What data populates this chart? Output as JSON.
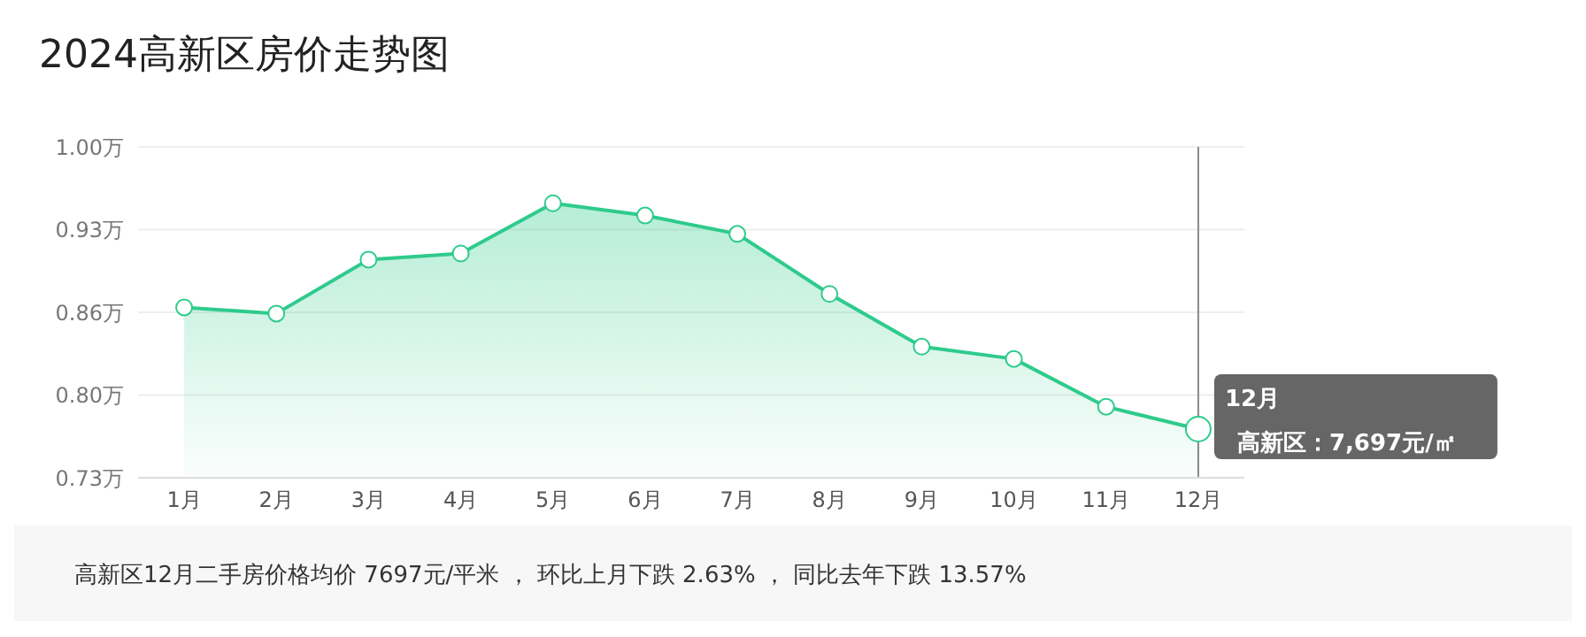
{
  "chart_data": {
    "type": "area",
    "title": "2024高新区房价走势图",
    "categories": [
      "1月",
      "2月",
      "3月",
      "4月",
      "5月",
      "6月",
      "7月",
      "8月",
      "9月",
      "10月",
      "11月",
      "12月"
    ],
    "series": [
      {
        "color": "#2ecb8c",
        "values": [
          0.869,
          0.864,
          0.908,
          0.913,
          0.954,
          0.944,
          0.929,
          0.88,
          0.837,
          0.827,
          0.788,
          0.7697
        ]
      }
    ],
    "ylim": [
      0.73,
      1.0
    ],
    "yticks": [
      {
        "value": 0.73,
        "label": "0.73万"
      },
      {
        "value": 0.7975,
        "label": "0.80万"
      },
      {
        "value": 0.865,
        "label": "0.86万"
      },
      {
        "value": 0.9325,
        "label": "0.93万"
      },
      {
        "value": 1.0,
        "label": "1.00万"
      }
    ],
    "grid": "y",
    "marker": "circle",
    "line_style": "solid",
    "legend": false,
    "ref_lines": [
      {
        "axis": "x",
        "value": "12月",
        "color": "#888888"
      }
    ],
    "annotations": [
      {
        "text": "12月",
        "x": "12月",
        "y": 0.7697
      },
      {
        "text": "高新区：7,697元/㎡",
        "x": "12月",
        "y": 0.7697
      },
      "高新区12月二手房价格均价 7697元/平米 ， 环比上月下跌 2.63% ， 同比去年下跌 13.57%"
    ]
  }
}
